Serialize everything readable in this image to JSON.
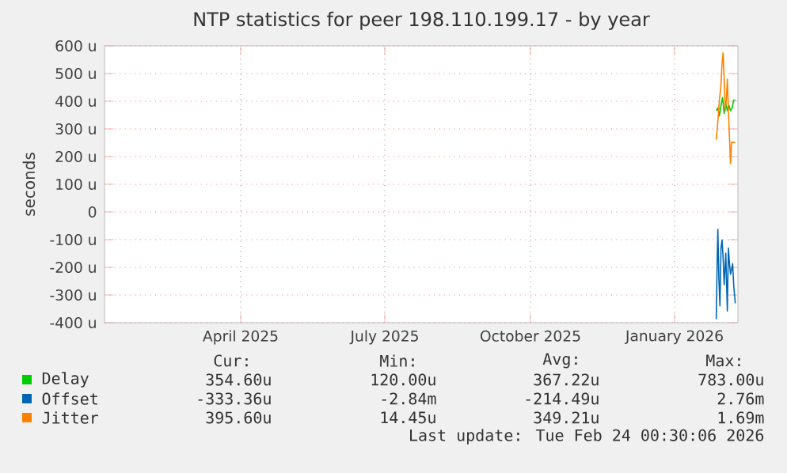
{
  "chart_data": {
    "type": "line",
    "title": "NTP statistics for peer 198.110.199.17 - by year",
    "ylabel": "seconds",
    "xlim": [
      "2025-01-20",
      "2026-02-24"
    ],
    "xticks": [
      {
        "value": "2025-04-16",
        "label": "April 2025"
      },
      {
        "value": "2025-07-16",
        "label": "July 2025"
      },
      {
        "value": "2025-10-16",
        "label": "October 2025"
      },
      {
        "value": "2026-01-15",
        "label": "January 2026"
      }
    ],
    "ylim": [
      -400,
      600
    ],
    "yticks": [
      {
        "value": -400,
        "label": "-400 u"
      },
      {
        "value": -300,
        "label": "-300 u"
      },
      {
        "value": -200,
        "label": "-200 u"
      },
      {
        "value": -100,
        "label": "-100 u"
      },
      0,
      {
        "value": 100,
        "label": "100 u"
      },
      {
        "value": 200,
        "label": "200 u"
      },
      {
        "value": 300,
        "label": "300 u"
      },
      {
        "value": 400,
        "label": "400 u"
      },
      {
        "value": 500,
        "label": "500 u"
      },
      {
        "value": 600,
        "label": "600 u"
      }
    ],
    "grid": true,
    "legend": "bottom",
    "series": [
      {
        "name": "Delay",
        "color": "#00cc00",
        "x": [
          "2026-02-10T08:00",
          "2026-02-11T08:00",
          "2026-02-12T08:00",
          "2026-02-13T08:00",
          "2026-02-14T08:00",
          "2026-02-15T08:00",
          "2026-02-16T08:00",
          "2026-02-17T08:00",
          "2026-02-18T08:00",
          "2026-02-19T08:00",
          "2026-02-20T08:00",
          "2026-02-21T08:00",
          "2026-02-22T08:00"
        ],
        "values": [
          366,
          375,
          347,
          385,
          413,
          356,
          394,
          366,
          385,
          366,
          375,
          404,
          404
        ]
      },
      {
        "name": "Offset",
        "color": "#0066b3",
        "x": [
          "2026-02-10T08:00",
          "2026-02-11T00:00",
          "2026-02-11T08:00",
          "2026-02-12T00:00",
          "2026-02-12T16:00",
          "2026-02-13T08:00",
          "2026-02-14T00:00",
          "2026-02-14T16:00",
          "2026-02-15T08:00",
          "2026-02-16T08:00",
          "2026-02-17T08:00",
          "2026-02-18T00:00",
          "2026-02-18T16:00",
          "2026-02-19T08:00",
          "2026-02-20T00:00",
          "2026-02-20T16:00",
          "2026-02-21T08:00",
          "2026-02-22T08:00"
        ],
        "values": [
          -387,
          -149,
          -63,
          -244,
          -339,
          -130,
          -101,
          -168,
          -263,
          -149,
          -358,
          -130,
          -187,
          -225,
          -206,
          -187,
          -263,
          -330
        ]
      },
      {
        "name": "Jitter",
        "color": "#ff8000",
        "x": [
          "2026-02-10T08:00",
          "2026-02-11T08:00",
          "2026-02-12T08:00",
          "2026-02-13T08:00",
          "2026-02-14T00:00",
          "2026-02-14T16:00",
          "2026-02-15T08:00",
          "2026-02-16T00:00",
          "2026-02-16T16:00",
          "2026-02-17T08:00",
          "2026-02-18T00:00",
          "2026-02-18T16:00",
          "2026-02-19T08:00",
          "2026-02-20T00:00",
          "2026-02-21T08:00",
          "2026-02-22T08:00"
        ],
        "values": [
          261,
          328,
          404,
          461,
          537,
          575,
          480,
          366,
          404,
          480,
          366,
          271,
          175,
          251,
          251,
          251
        ]
      }
    ],
    "annotations": [
      "Cur:",
      "Min:",
      "Avg:",
      "Max:",
      "354.60u",
      "120.00u",
      "367.22u",
      "783.00u",
      "-333.36u",
      "-2.84m",
      "-214.49u",
      "2.76m",
      "395.60u",
      "14.45u",
      "349.21u",
      "1.69m",
      "Last update: Tue Feb 24 00:30:06 2026"
    ]
  }
}
